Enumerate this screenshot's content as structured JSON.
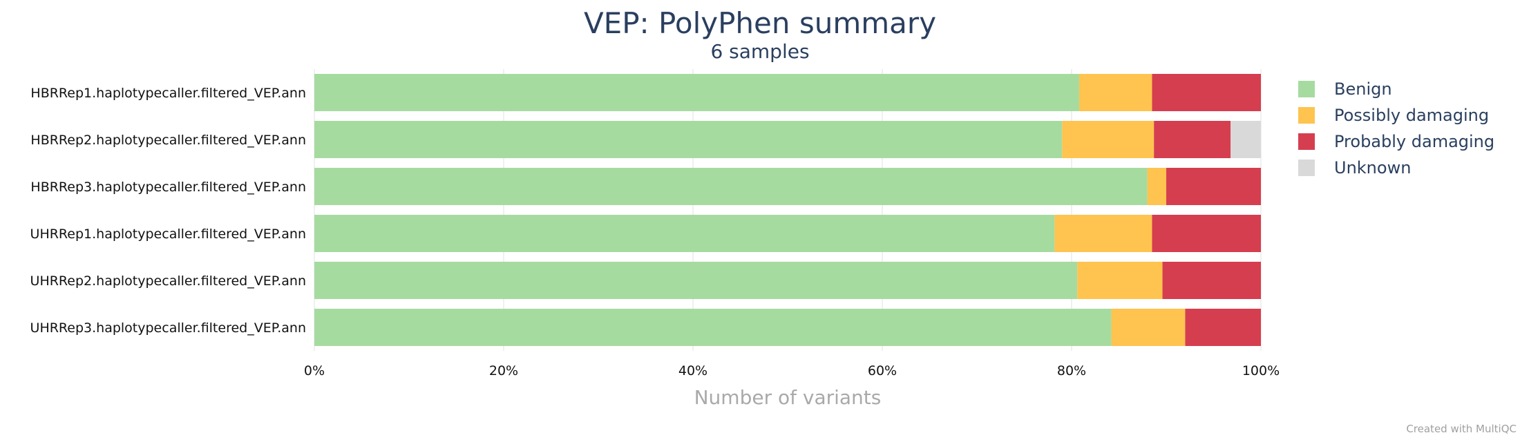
{
  "chart_data": {
    "type": "bar",
    "orientation": "horizontal",
    "stacked": "percent",
    "title": "VEP: PolyPhen summary",
    "subtitle": "6 samples",
    "xlabel": "Number of variants",
    "ylabel": "",
    "xlim": [
      0,
      100
    ],
    "x_ticks": [
      "0%",
      "20%",
      "40%",
      "60%",
      "80%",
      "100%"
    ],
    "grid": true,
    "legend_position": "right",
    "categories": [
      "HBRRep1.haplotypecaller.filtered_VEP.ann",
      "HBRRep2.haplotypecaller.filtered_VEP.ann",
      "HBRRep3.haplotypecaller.filtered_VEP.ann",
      "UHRRep1.haplotypecaller.filtered_VEP.ann",
      "UHRRep2.haplotypecaller.filtered_VEP.ann",
      "UHRRep3.haplotypecaller.filtered_VEP.ann"
    ],
    "series": [
      {
        "name": "Benign",
        "color": "#a6dba0",
        "values": [
          80.8,
          79.0,
          88.0,
          78.2,
          80.6,
          84.2
        ]
      },
      {
        "name": "Possibly damaging",
        "color": "#fec44f",
        "values": [
          7.7,
          9.7,
          2.0,
          10.3,
          9.0,
          7.8
        ]
      },
      {
        "name": "Probably damaging",
        "color": "#d53e4f",
        "values": [
          11.5,
          8.1,
          10.0,
          11.5,
          10.4,
          8.0
        ]
      },
      {
        "name": "Unknown",
        "color": "#d9d9d9",
        "values": [
          0.0,
          3.2,
          0.0,
          0.0,
          0.0,
          0.0
        ]
      }
    ]
  },
  "footer": {
    "credit": "Created with MultiQC"
  }
}
